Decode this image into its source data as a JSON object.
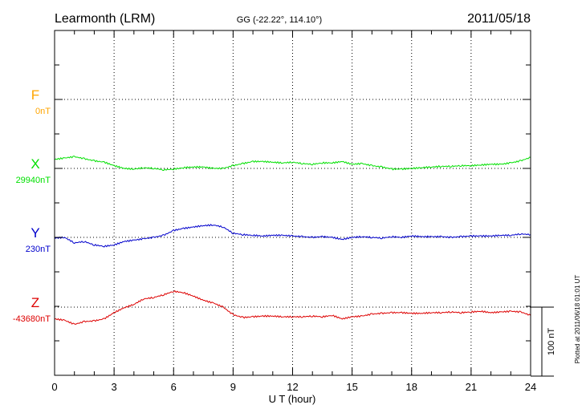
{
  "header": {
    "station": "Learmonth (LRM)",
    "coords": "GG (-22.22°, 114.10°)",
    "date": "2011/05/18"
  },
  "scale_bar": {
    "label": "100 nT"
  },
  "footnote": "Plotted at 2011/06/18 01:01  UT",
  "chart_data": {
    "type": "line",
    "title": "Learmonth (LRM)",
    "xlabel": "U T (hour)",
    "xlim": [
      0,
      24
    ],
    "xticks": [
      "0",
      "3",
      "6",
      "9",
      "12",
      "15",
      "18",
      "21",
      "24"
    ],
    "grid": true,
    "scale_nT": 100,
    "series": [
      {
        "name": "F",
        "baseline_label": "0nT",
        "baseline": 0,
        "color": "#FFA500",
        "x": [],
        "y": []
      },
      {
        "name": "X",
        "baseline_label": "29940nT",
        "baseline": 29940,
        "color": "#00E000",
        "x": [
          0,
          0.5,
          1,
          1.5,
          2,
          2.5,
          3,
          3.5,
          4,
          4.5,
          5,
          5.5,
          6,
          6.5,
          7,
          7.5,
          8,
          8.5,
          9,
          9.5,
          10,
          10.5,
          11,
          11.5,
          12,
          12.5,
          13,
          13.5,
          14,
          14.5,
          15,
          15.5,
          16,
          16.5,
          17,
          17.5,
          18,
          18.5,
          19,
          19.5,
          20,
          20.5,
          21,
          21.5,
          22,
          22.5,
          23,
          23.5,
          24
        ],
        "y": [
          29953,
          29955,
          29957,
          29954,
          29951,
          29949,
          29944,
          29940,
          29939,
          29941,
          29940,
          29938,
          29939,
          29941,
          29942,
          29942,
          29940,
          29940,
          29944,
          29947,
          29950,
          29950,
          29949,
          29948,
          29949,
          29947,
          29946,
          29948,
          29948,
          29950,
          29946,
          29947,
          29944,
          29942,
          29939,
          29939,
          29940,
          29941,
          29942,
          29943,
          29943,
          29944,
          29944,
          29945,
          29946,
          29946,
          29948,
          29951,
          29956
        ]
      },
      {
        "name": "Y",
        "baseline_label": "230nT",
        "baseline": 230,
        "color": "#0000CC",
        "x": [
          0,
          0.5,
          1,
          1.5,
          2,
          2.5,
          3,
          3.5,
          4,
          4.5,
          5,
          5.5,
          6,
          6.5,
          7,
          7.5,
          8,
          8.5,
          9,
          9.5,
          10,
          10.5,
          11,
          11.5,
          12,
          12.5,
          13,
          13.5,
          14,
          14.5,
          15,
          15.5,
          16,
          16.5,
          17,
          17.5,
          18,
          18.5,
          19,
          19.5,
          20,
          20.5,
          21,
          21.5,
          22,
          22.5,
          23,
          23.5,
          24
        ],
        "y": [
          229,
          230,
          222,
          224,
          219,
          217,
          219,
          224,
          226,
          228,
          230,
          233,
          240,
          243,
          245,
          247,
          248,
          245,
          236,
          234,
          233,
          232,
          233,
          233,
          232,
          231,
          230,
          231,
          230,
          227,
          230,
          231,
          230,
          229,
          231,
          230,
          232,
          231,
          231,
          231,
          230,
          231,
          232,
          232,
          232,
          233,
          233,
          235,
          234
        ]
      },
      {
        "name": "Z",
        "baseline_label": "-43680nT",
        "baseline": -43680,
        "color": "#DD0000",
        "x": [
          0,
          0.5,
          1,
          1.5,
          2,
          2.5,
          3,
          3.5,
          4,
          4.5,
          5,
          5.5,
          6,
          6.5,
          7,
          7.5,
          8,
          8.5,
          9,
          9.5,
          10,
          10.5,
          11,
          11.5,
          12,
          12.5,
          13,
          13.5,
          14,
          14.5,
          15,
          15.5,
          16,
          16.5,
          17,
          17.5,
          18,
          18.5,
          19,
          19.5,
          20,
          20.5,
          21,
          21.5,
          22,
          22.5,
          23,
          23.5,
          24
        ],
        "y": [
          -43697,
          -43699,
          -43705,
          -43701,
          -43700,
          -43697,
          -43688,
          -43681,
          -43676,
          -43668,
          -43666,
          -43662,
          -43657,
          -43659,
          -43664,
          -43670,
          -43674,
          -43680,
          -43691,
          -43695,
          -43694,
          -43693,
          -43693,
          -43694,
          -43694,
          -43694,
          -43693,
          -43694,
          -43692,
          -43697,
          -43694,
          -43693,
          -43690,
          -43689,
          -43688,
          -43688,
          -43689,
          -43689,
          -43688,
          -43688,
          -43687,
          -43688,
          -43687,
          -43686,
          -43688,
          -43687,
          -43686,
          -43687,
          -43692
        ]
      }
    ]
  }
}
